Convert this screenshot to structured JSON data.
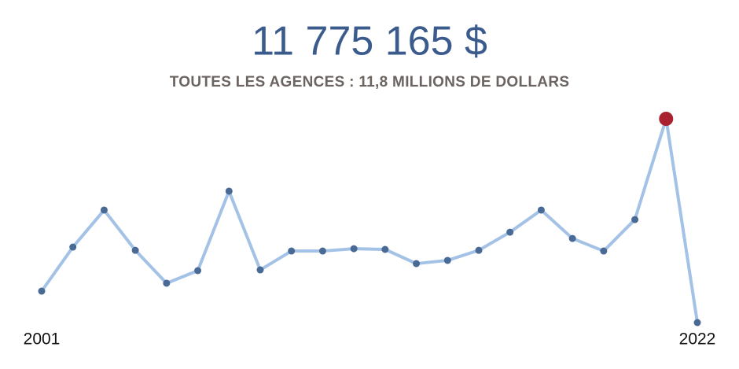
{
  "chart_data": {
    "type": "line",
    "title": "11 775 165 $",
    "subtitle": "TOUTES LES AGENCES : 11,8 MILLIONS DE DOLLARS",
    "categories": [
      "2001",
      null,
      null,
      null,
      null,
      null,
      null,
      null,
      null,
      null,
      null,
      null,
      null,
      null,
      null,
      null,
      null,
      null,
      null,
      null,
      null,
      "2022"
    ],
    "series": [
      {
        "color": "#a4c2e6",
        "marker_color": "#4a6a96",
        "highlight_color": "#a8232f",
        "values": [
          2190000,
          4640000,
          6700000,
          4460000,
          2630000,
          3330000,
          7750000,
          3370000,
          4420000,
          4420000,
          4550000,
          4510000,
          3720000,
          3900000,
          4460000,
          5470000,
          6700000,
          5120000,
          4420000,
          6170000,
          11775165,
          440000
        ]
      }
    ]
  }
}
